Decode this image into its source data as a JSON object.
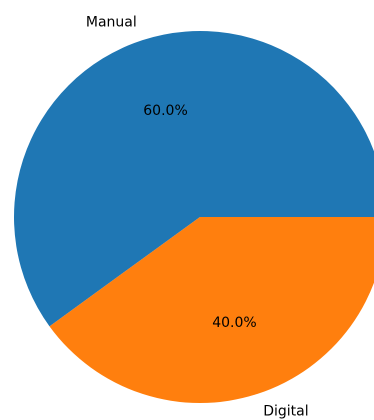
{
  "chart_data": {
    "type": "pie",
    "slices": [
      {
        "label": "Manual",
        "value": 60.0,
        "percent_label": "60.0%",
        "color": "#1f77b4"
      },
      {
        "label": "Digital",
        "value": 40.0,
        "percent_label": "40.0%",
        "color": "#ff7f0e"
      }
    ],
    "start_angle_deg": 0,
    "direction": "counterclockwise",
    "legend": "none"
  }
}
